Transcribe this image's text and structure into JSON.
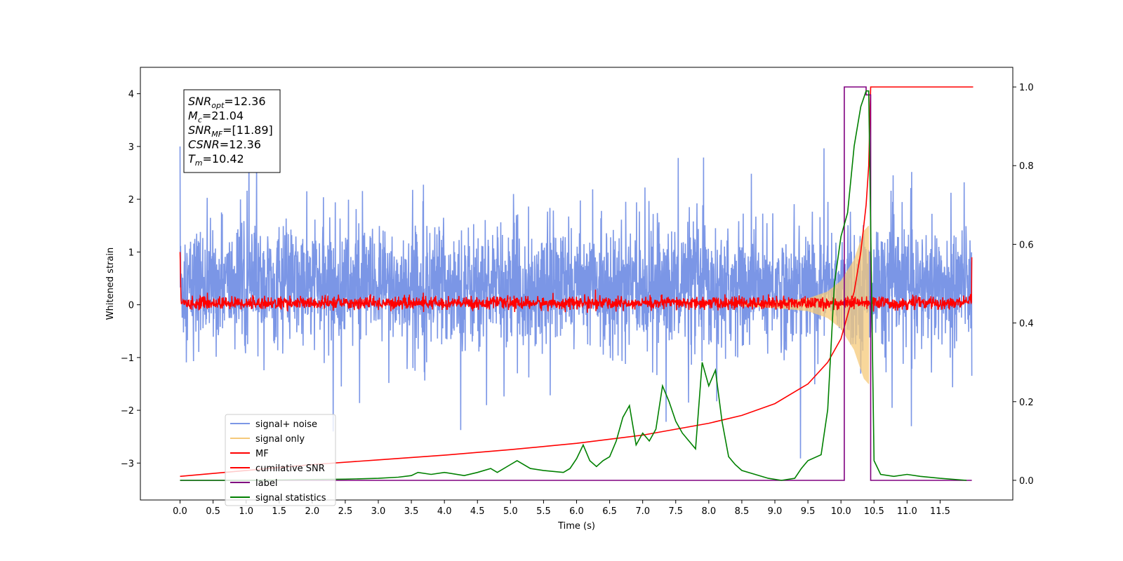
{
  "chart_data": {
    "type": "line",
    "xlabel": "Time (s)",
    "ylabel": "Whitened strain",
    "xlim": [
      -0.6,
      12.6
    ],
    "ylim": [
      -3.7,
      4.5
    ],
    "ylim_right": [
      -0.05,
      1.05
    ],
    "x_ticks": [
      "0.0",
      "0.5",
      "1.0",
      "1.5",
      "2.0",
      "2.5",
      "3.0",
      "3.5",
      "4.0",
      "4.5",
      "5.0",
      "5.5",
      "6.0",
      "6.5",
      "7.0",
      "7.5",
      "8.0",
      "8.5",
      "9.0",
      "9.5",
      "10.0",
      "10.5",
      "11.0",
      "11.5"
    ],
    "y_ticks": [
      "−3",
      "−2",
      "−1",
      "0",
      "1",
      "2",
      "3",
      "4"
    ],
    "y_ticks_right": [
      "0.0",
      "0.2",
      "0.4",
      "0.6",
      "0.8",
      "1.0"
    ],
    "stats_box": [
      {
        "sym": "SNR",
        "sub": "opt",
        "value": "=12.36"
      },
      {
        "sym": "M",
        "sub": "c",
        "value": "=21.04"
      },
      {
        "sym": "SNR",
        "sub": "MF",
        "value": "=[11.89]"
      },
      {
        "sym": "CSNR",
        "sub": "",
        "value": "=12.36"
      },
      {
        "sym": "T",
        "sub": "m",
        "value": "=10.42"
      }
    ],
    "legend": [
      {
        "label": "signal+ noise",
        "color": "#7b96e6"
      },
      {
        "label": "signal only",
        "color": "#f5c97a"
      },
      {
        "label": "MF",
        "color": "#ff0000"
      },
      {
        "label": "cumilative SNR",
        "color": "#ff0000"
      },
      {
        "label": "label",
        "color": "#800080"
      },
      {
        "label": "signal statistics",
        "color": "#008000"
      }
    ],
    "legend_position": "lower-left",
    "series": [
      {
        "name": "signal+ noise",
        "axis": "left",
        "color": "#7b96e6",
        "x_range": [
          0.0,
          11.98
        ],
        "description_values": {
          "typical_band": [
            -1.2,
            2.0
          ],
          "max_peak": 3.5,
          "min_trough": -3.0
        }
      },
      {
        "name": "signal only",
        "axis": "left",
        "color": "#f5c97a",
        "x_range": [
          8.5,
          10.42
        ],
        "envelope": {
          "x": [
            8.5,
            9.0,
            9.5,
            9.8,
            10.0,
            10.2,
            10.35,
            10.42
          ],
          "amplitude": [
            0.03,
            0.06,
            0.12,
            0.25,
            0.45,
            0.85,
            1.4,
            1.5
          ]
        }
      },
      {
        "name": "MF",
        "axis": "left",
        "color": "#ff0000",
        "x_range": [
          0.0,
          11.98
        ],
        "start_value": 1.0,
        "band": [
          -0.1,
          0.15
        ]
      },
      {
        "name": "cumilative SNR",
        "axis": "right",
        "color": "#ff0000",
        "x": [
          0.0,
          1.0,
          2.0,
          3.0,
          4.0,
          5.0,
          6.0,
          7.0,
          8.0,
          8.5,
          9.0,
          9.5,
          9.8,
          10.0,
          10.2,
          10.3,
          10.38,
          10.42,
          10.45,
          12.0
        ],
        "y": [
          0.01,
          0.025,
          0.04,
          0.052,
          0.064,
          0.078,
          0.094,
          0.115,
          0.145,
          0.165,
          0.195,
          0.245,
          0.3,
          0.36,
          0.48,
          0.58,
          0.7,
          0.8,
          1.0,
          1.0
        ]
      },
      {
        "name": "label",
        "axis": "right",
        "color": "#800080",
        "x": [
          0.0,
          10.05,
          10.05,
          10.38,
          10.38,
          10.45,
          10.45,
          11.98
        ],
        "y": [
          0.0,
          0.0,
          1.0,
          1.0,
          0.98,
          0.98,
          0.0,
          0.0
        ]
      },
      {
        "name": "signal statistics",
        "axis": "right",
        "color": "#008000",
        "x": [
          0.0,
          1.0,
          2.0,
          2.5,
          3.0,
          3.3,
          3.5,
          3.6,
          3.8,
          4.0,
          4.3,
          4.5,
          4.7,
          4.8,
          5.0,
          5.1,
          5.3,
          5.5,
          5.8,
          5.9,
          6.0,
          6.1,
          6.2,
          6.3,
          6.4,
          6.5,
          6.6,
          6.7,
          6.8,
          6.9,
          7.0,
          7.1,
          7.2,
          7.3,
          7.4,
          7.5,
          7.6,
          7.7,
          7.8,
          7.9,
          8.0,
          8.1,
          8.2,
          8.3,
          8.4,
          8.5,
          8.7,
          8.9,
          9.1,
          9.3,
          9.4,
          9.5,
          9.7,
          9.8,
          9.9,
          10.0,
          10.1,
          10.2,
          10.3,
          10.38,
          10.42,
          10.5,
          10.6,
          10.8,
          11.0,
          11.2,
          11.5,
          11.9
        ],
        "y": [
          0.0,
          0.0,
          0.002,
          0.003,
          0.005,
          0.008,
          0.012,
          0.02,
          0.015,
          0.02,
          0.012,
          0.02,
          0.03,
          0.02,
          0.04,
          0.05,
          0.03,
          0.025,
          0.02,
          0.03,
          0.055,
          0.09,
          0.05,
          0.035,
          0.05,
          0.06,
          0.1,
          0.16,
          0.19,
          0.09,
          0.12,
          0.1,
          0.13,
          0.24,
          0.2,
          0.15,
          0.12,
          0.1,
          0.08,
          0.3,
          0.24,
          0.28,
          0.15,
          0.06,
          0.04,
          0.025,
          0.015,
          0.005,
          0.0,
          0.005,
          0.03,
          0.05,
          0.065,
          0.18,
          0.5,
          0.62,
          0.68,
          0.85,
          0.95,
          0.99,
          0.99,
          0.05,
          0.015,
          0.01,
          0.015,
          0.01,
          0.005,
          0.0
        ]
      }
    ]
  }
}
